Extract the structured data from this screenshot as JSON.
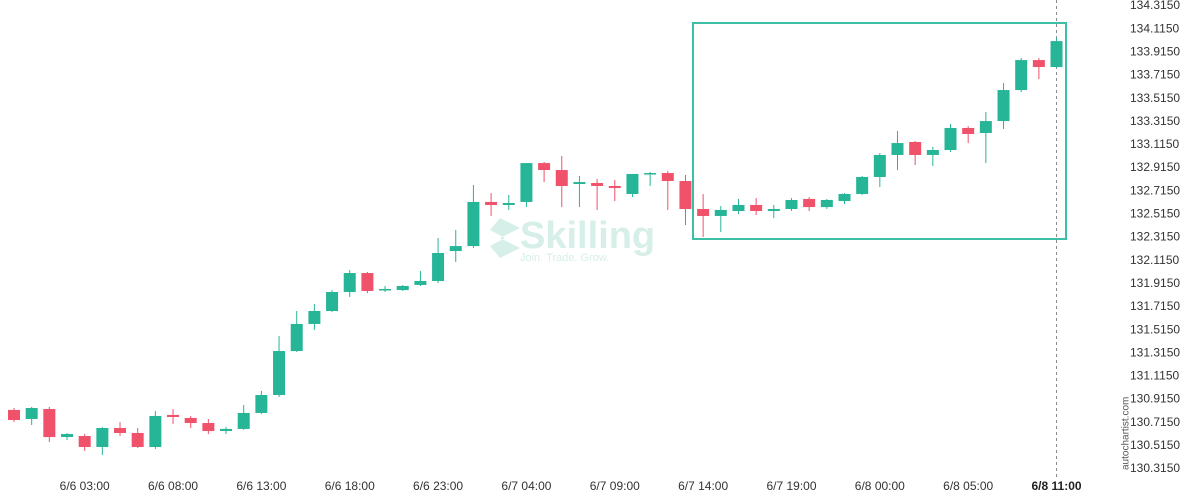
{
  "chart_data": {
    "type": "candlestick",
    "categories": [
      null,
      null,
      null,
      null,
      "6/6 03:00",
      null,
      null,
      null,
      null,
      "6/6 08:00",
      null,
      null,
      null,
      null,
      "6/6 13:00",
      null,
      null,
      null,
      null,
      "6/6 18:00",
      null,
      null,
      null,
      null,
      "6/6 23:00",
      null,
      null,
      null,
      null,
      "6/7 04:00",
      null,
      null,
      null,
      null,
      "6/7 09:00",
      null,
      null,
      null,
      null,
      "6/7 14:00",
      null,
      null,
      null,
      null,
      "6/7 19:00",
      null,
      null,
      null,
      null,
      "6/8 00:00",
      null,
      null,
      null,
      null,
      "6/8 05:00",
      null,
      null,
      null,
      null,
      "6/8 11:00"
    ],
    "open": [
      130.825,
      130.747,
      130.833,
      130.591,
      130.6,
      130.505,
      130.669,
      130.626,
      130.505,
      130.782,
      130.756,
      130.712,
      130.643,
      130.661,
      130.799,
      130.954,
      131.334,
      131.568,
      131.68,
      131.844,
      132.008,
      131.861,
      131.861,
      131.905,
      131.939,
      132.198,
      132.241,
      132.622,
      132.596,
      132.622,
      132.958,
      132.898,
      132.777,
      132.786,
      132.76,
      132.691,
      132.864,
      132.872,
      132.803,
      132.561,
      132.501,
      132.544,
      132.596,
      132.544,
      132.561,
      132.648,
      132.578,
      132.63,
      132.691,
      132.838,
      133.028,
      133.14,
      133.028,
      133.071,
      133.261,
      133.218,
      133.321,
      133.589,
      133.848,
      133.788
    ],
    "high": [
      130.842,
      130.851,
      130.851,
      130.626,
      130.617,
      130.678,
      130.721,
      130.669,
      130.816,
      130.833,
      130.773,
      130.747,
      130.678,
      130.868,
      130.989,
      131.464,
      131.68,
      131.74,
      131.861,
      132.034,
      132.017,
      131.896,
      131.905,
      132.026,
      132.311,
      132.38,
      132.769,
      132.699,
      132.682,
      132.958,
      132.967,
      133.019,
      132.846,
      132.82,
      132.812,
      132.864,
      132.881,
      132.889,
      132.855,
      132.691,
      132.587,
      132.648,
      132.656,
      132.596,
      132.656,
      132.665,
      132.648,
      132.699,
      132.846,
      133.045,
      133.235,
      133.149,
      133.097,
      133.295,
      133.278,
      133.399,
      133.65,
      133.866,
      133.866,
      134.038
    ],
    "low": [
      130.721,
      130.695,
      130.548,
      130.566,
      130.471,
      130.436,
      130.6,
      130.496,
      130.488,
      130.704,
      130.669,
      130.617,
      130.617,
      130.652,
      130.79,
      130.937,
      131.326,
      131.516,
      131.671,
      131.801,
      131.835,
      131.844,
      131.853,
      131.896,
      131.922,
      132.103,
      132.224,
      132.501,
      132.553,
      132.578,
      132.794,
      132.578,
      132.578,
      132.553,
      132.63,
      132.665,
      132.76,
      132.553,
      132.423,
      132.319,
      132.362,
      132.518,
      132.509,
      132.483,
      132.544,
      132.544,
      132.561,
      132.604,
      132.682,
      132.751,
      132.898,
      132.941,
      132.933,
      133.054,
      133.131,
      132.958,
      133.252,
      133.572,
      133.684,
      133.779
    ],
    "close": [
      130.738,
      130.842,
      130.591,
      130.617,
      130.505,
      130.669,
      130.626,
      130.505,
      130.773,
      130.764,
      130.712,
      130.643,
      130.661,
      130.799,
      130.954,
      131.334,
      131.568,
      131.68,
      131.844,
      132.008,
      131.853,
      131.87,
      131.896,
      131.939,
      132.181,
      132.241,
      132.622,
      132.596,
      132.613,
      132.958,
      132.898,
      132.76,
      132.794,
      132.76,
      132.743,
      132.864,
      132.872,
      132.803,
      132.561,
      132.501,
      132.553,
      132.596,
      132.544,
      132.561,
      132.639,
      132.578,
      132.639,
      132.691,
      132.838,
      133.028,
      133.131,
      133.028,
      133.071,
      133.261,
      133.209,
      133.321,
      133.589,
      133.848,
      133.788,
      134.012
    ],
    "up_color": "#26b597",
    "down_color": "#f0516b",
    "ylim": [
      130.237,
      134.367
    ],
    "yticks": [
      {
        "value": 130.315,
        "label": "130.3150"
      },
      {
        "value": 130.515,
        "label": "130.5150"
      },
      {
        "value": 130.715,
        "label": "130.7150"
      },
      {
        "value": 130.915,
        "label": "130.9150"
      },
      {
        "value": 131.115,
        "label": "131.1150"
      },
      {
        "value": 131.315,
        "label": "131.3150"
      },
      {
        "value": 131.515,
        "label": "131.5150"
      },
      {
        "value": 131.715,
        "label": "131.7150"
      },
      {
        "value": 131.915,
        "label": "131.9150"
      },
      {
        "value": 132.115,
        "label": "132.1150"
      },
      {
        "value": 132.315,
        "label": "132.3150"
      },
      {
        "value": 132.515,
        "label": "132.5150"
      },
      {
        "value": 132.715,
        "label": "132.7150"
      },
      {
        "value": 132.915,
        "label": "132.9150"
      },
      {
        "value": 133.115,
        "label": "133.1150"
      },
      {
        "value": 133.315,
        "label": "133.3150"
      },
      {
        "value": 133.515,
        "label": "133.5150"
      },
      {
        "value": 133.715,
        "label": "133.7150"
      },
      {
        "value": 133.915,
        "label": "133.9150"
      },
      {
        "value": 134.115,
        "label": "134.1150"
      },
      {
        "value": 134.315,
        "label": "134.3150"
      }
    ],
    "grid": false,
    "watermark": {
      "title": "Skilling",
      "tagline": "Join. Trade. Grow."
    },
    "source": "autochartist.com"
  }
}
